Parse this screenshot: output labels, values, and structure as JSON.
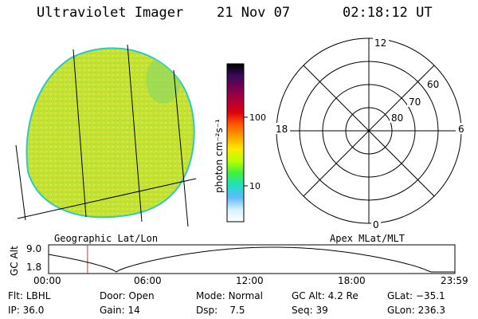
{
  "header": {
    "app_title": "Ultraviolet Imager",
    "date": "21 Nov 07",
    "time": "02:18:12 UT"
  },
  "geo_panel": {
    "caption": "Geographic Lat/Lon",
    "fill_color": "#c8e234"
  },
  "colorbar": {
    "label": "photon cm⁻²s⁻¹",
    "scale": "log",
    "ticks": [
      "100",
      "10"
    ],
    "tick_values": [
      100,
      10
    ],
    "range": [
      3,
      600
    ],
    "colors": [
      "#000000",
      "#3a0a5a",
      "#7a0050",
      "#b0003a",
      "#dd0010",
      "#ff5a00",
      "#ffa000",
      "#ffe800",
      "#b8ff00",
      "#40f040",
      "#20e0c0",
      "#60b8ff",
      "#d8f0ff",
      "#ffffff"
    ]
  },
  "polar_panel": {
    "caption": "Apex MLat/MLT",
    "mlt_labels": {
      "top": "12",
      "left": "18",
      "right": "6",
      "bottom": "0"
    },
    "mlat_labels": [
      "60",
      "70",
      "80"
    ]
  },
  "altitude_plot": {
    "ylabel": "GC Alt",
    "y_ticks": [
      "9.0",
      "1.8"
    ],
    "x_ticks": [
      "00:00",
      "06:00",
      "12:00",
      "18:00",
      "23:59"
    ],
    "marker_time_hours": 2.3
  },
  "status": {
    "filter": {
      "label": "Flt:",
      "value": "LBHL"
    },
    "door": {
      "label": "Door:",
      "value": "Open"
    },
    "mode": {
      "label": "Mode:",
      "value": "Normal"
    },
    "gc_alt": {
      "label": "GC Alt:",
      "value": "4.2 Re"
    },
    "glat": {
      "label": "GLat:",
      "value": "−35.1"
    },
    "ip": {
      "label": "IP:",
      "value": "36.0"
    },
    "gain": {
      "label": "Gain:",
      "value": "14"
    },
    "dsp": {
      "label": "Dsp:",
      "value": "7.5"
    },
    "seq": {
      "label": "Seq:",
      "value": "39"
    },
    "glon": {
      "label": "GLon:",
      "value": "236.3"
    }
  }
}
